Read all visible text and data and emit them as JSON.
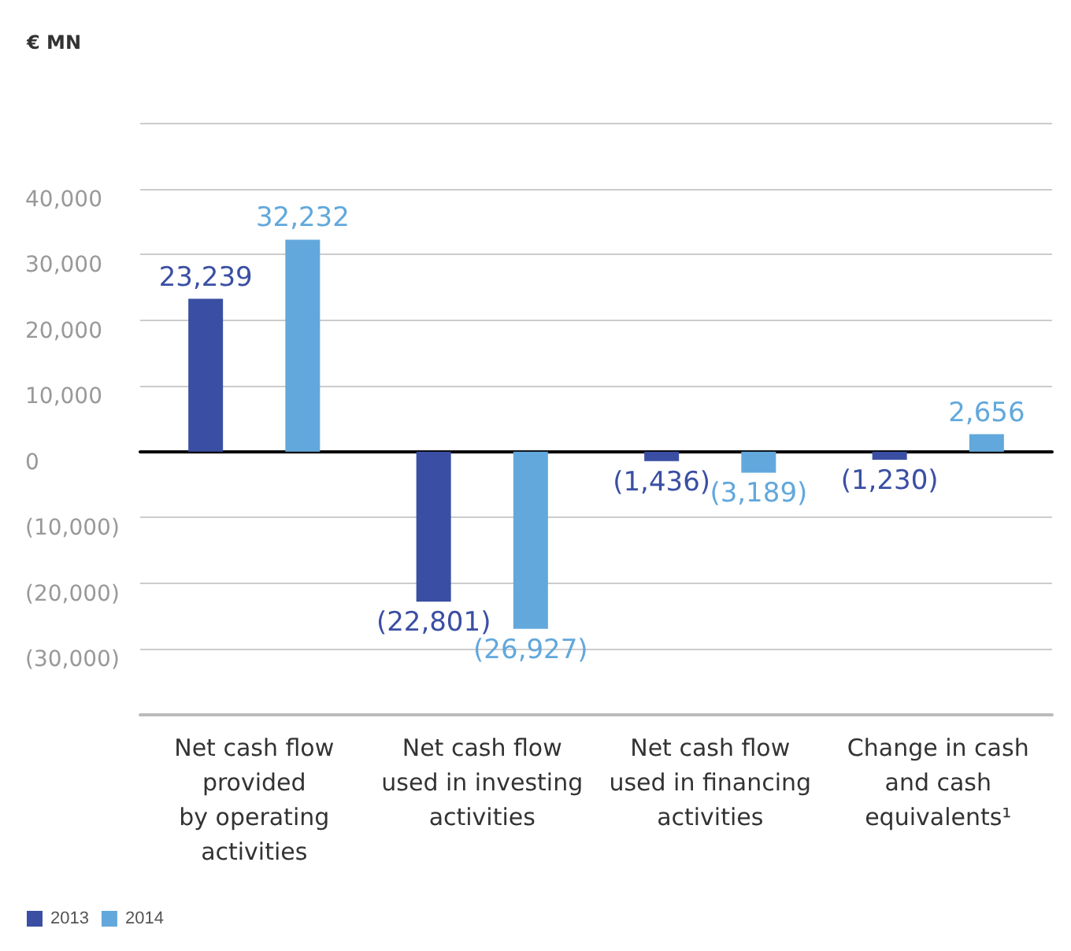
{
  "chart_data": {
    "type": "bar",
    "ylabel": "€ MN",
    "categories": [
      "Net cash flow\nprovided\nby operating\nactivities",
      "Net cash flow\nused in investing\nactivities",
      "Net cash flow\nused in financing\nactivities",
      "Change in cash\nand cash\nequivalents¹"
    ],
    "series": [
      {
        "name": "2013",
        "color": "#3a4fa3",
        "values": [
          23239,
          -22801,
          -1436,
          -1230
        ],
        "value_labels": [
          "23,239",
          "(22,801)",
          "(1,436)",
          "(1,230)"
        ]
      },
      {
        "name": "2014",
        "color": "#62a8dc",
        "values": [
          32232,
          -26927,
          -3189,
          2656
        ],
        "value_labels": [
          "32,232",
          "(26,927)",
          "(3,189)",
          "2,656"
        ]
      }
    ],
    "ylim": [
      -40000,
      50000
    ],
    "yticks": [
      {
        "value": -40000,
        "label": null
      },
      {
        "value": -30000,
        "label": "(30,000)"
      },
      {
        "value": -20000,
        "label": "(20,000)"
      },
      {
        "value": -10000,
        "label": "(10,000)"
      },
      0,
      {
        "value": 10000,
        "label": "10,000"
      },
      {
        "value": 20000,
        "label": "20,000"
      },
      {
        "value": 30000,
        "label": "30,000"
      },
      {
        "value": 40000,
        "label": "40,000"
      },
      {
        "value": 50000,
        "label": null
      }
    ],
    "grid": "y",
    "legend": "bottom left"
  }
}
